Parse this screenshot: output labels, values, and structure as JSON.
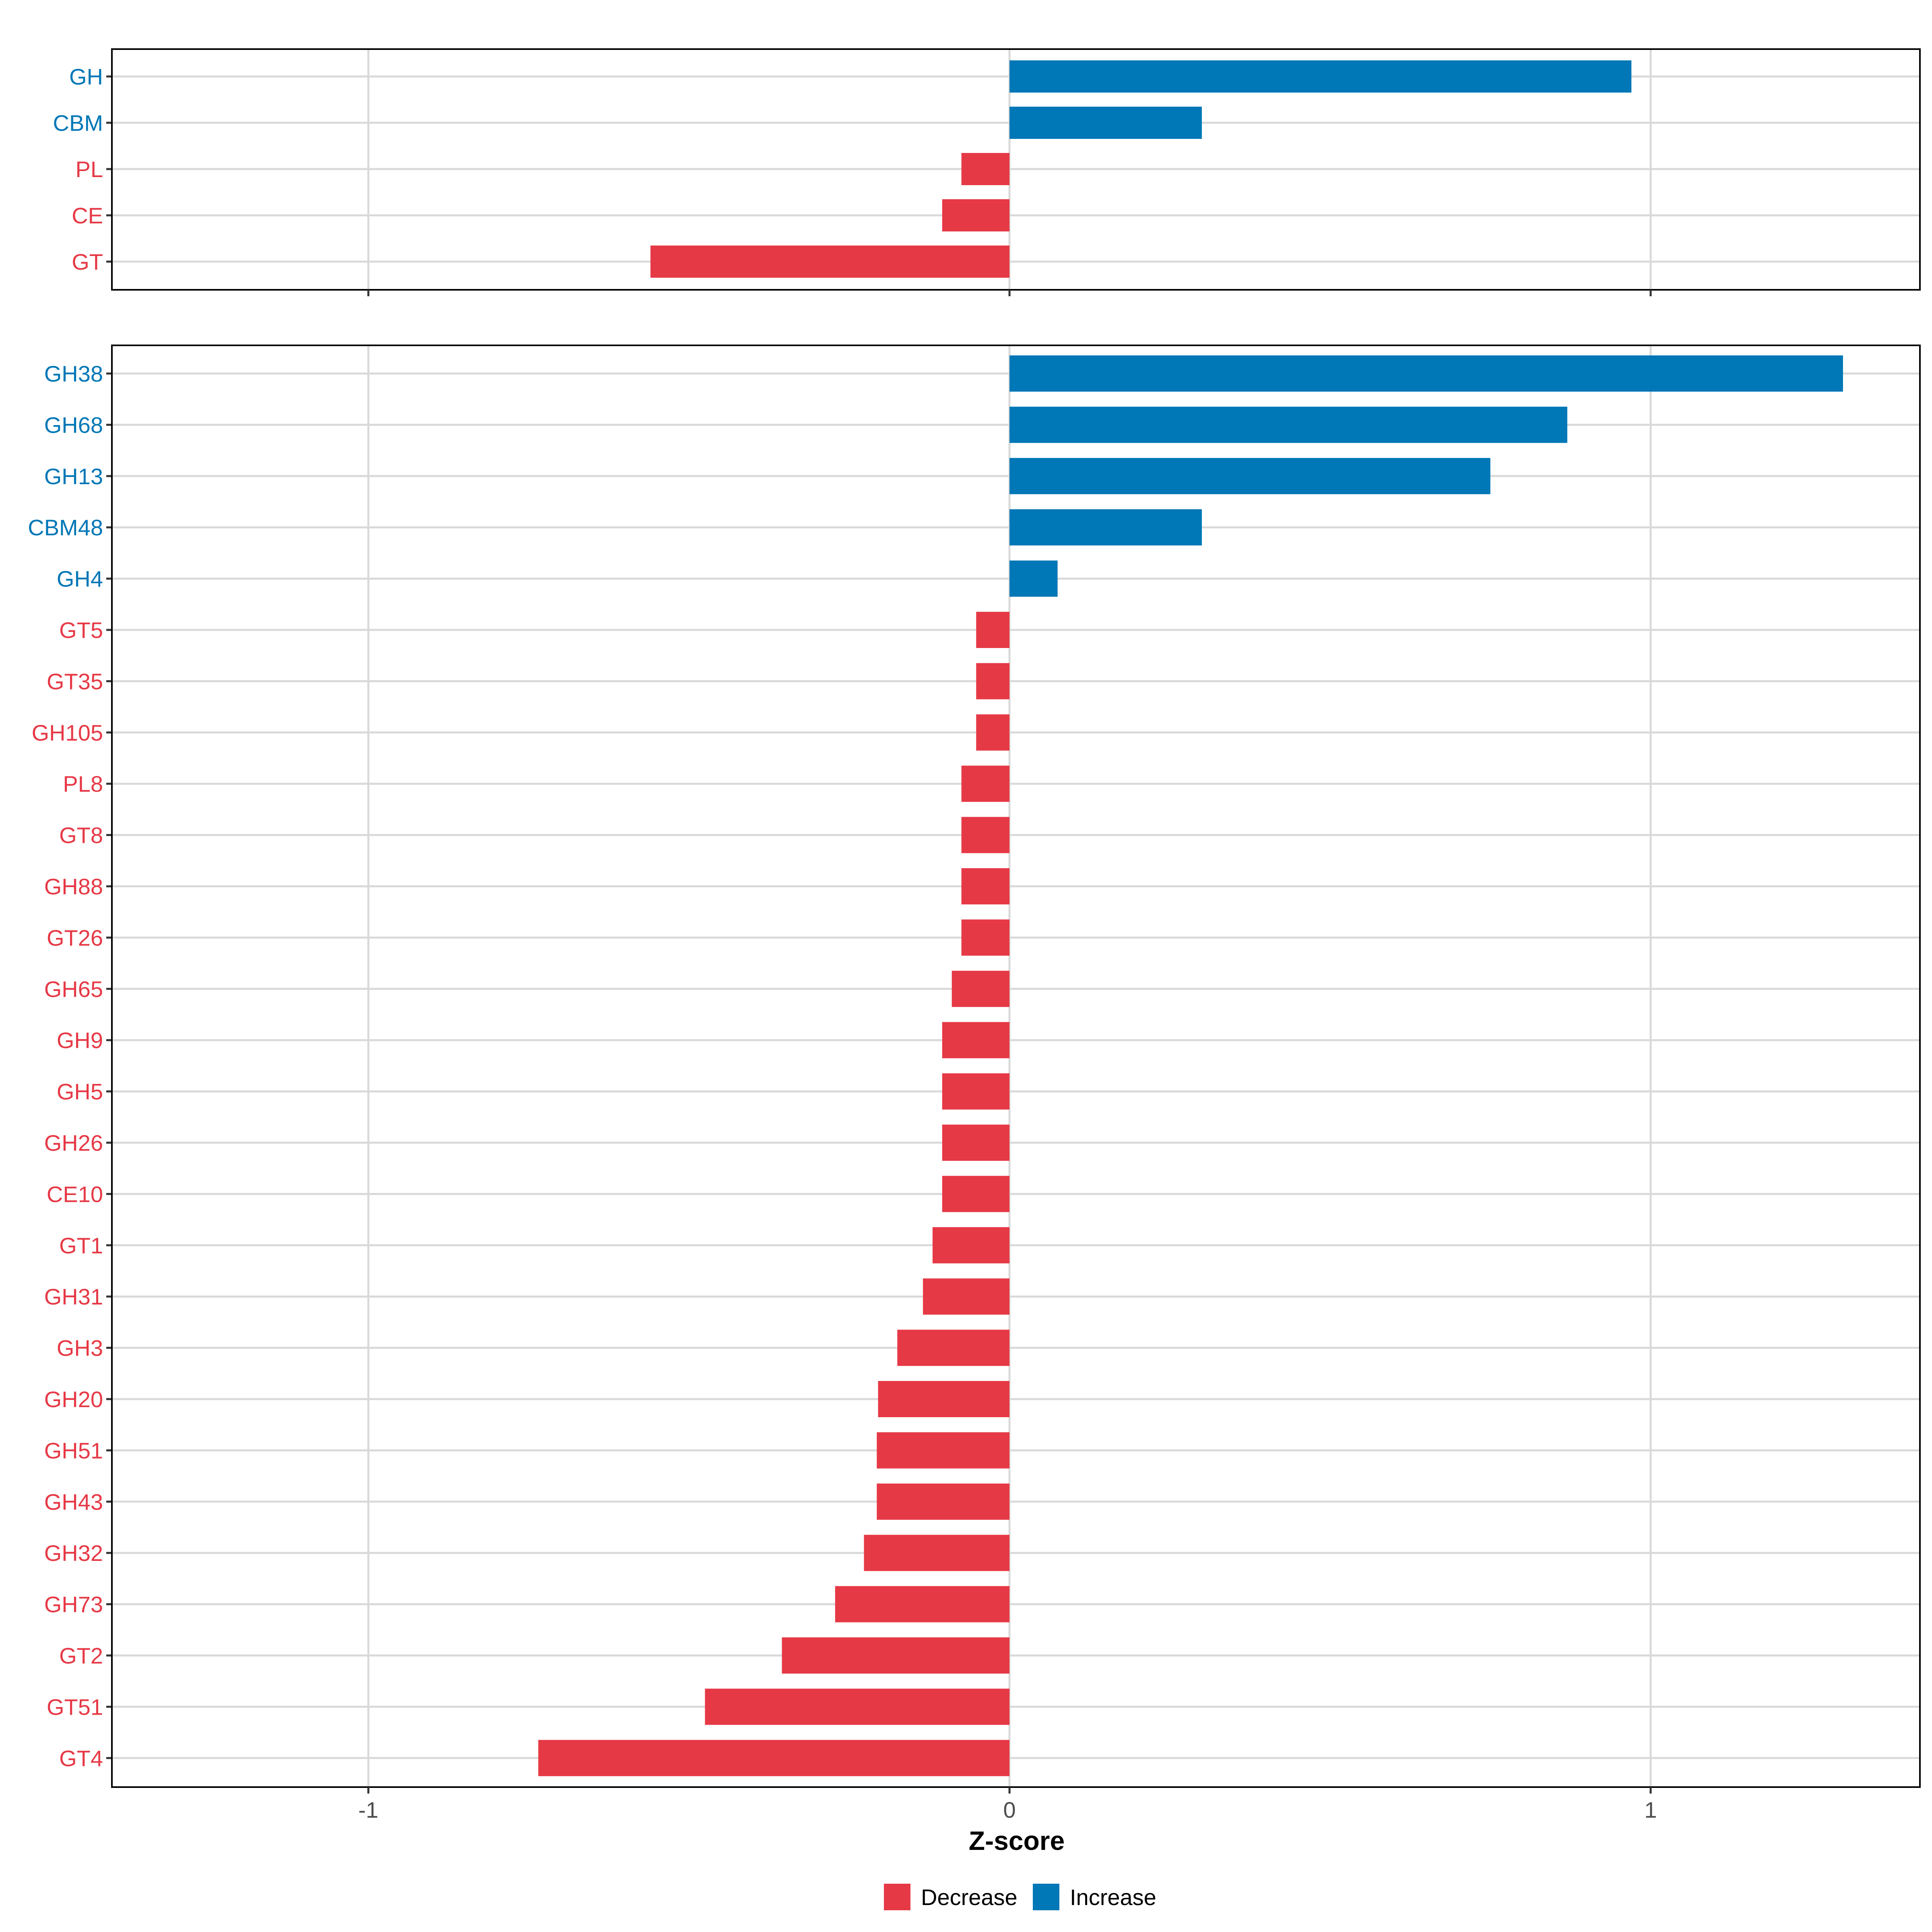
{
  "chart_data": {
    "type": "bar",
    "orientation": "horizontal",
    "xlabel": "Z-score",
    "xlim": [
      -1.4,
      1.42
    ],
    "xticks": [
      -1,
      0,
      1
    ],
    "xtick_labels": [
      "-1",
      "0",
      "1"
    ],
    "grid": true,
    "colors": {
      "Decrease": "#E63946",
      "Increase": "#0077B6"
    },
    "legend": {
      "position": "bottom",
      "entries": [
        "Decrease",
        "Increase"
      ]
    },
    "panels": [
      {
        "name": "top",
        "categories": [
          "GH",
          "CBM",
          "PL",
          "CE",
          "GT"
        ],
        "values": [
          0.97,
          0.3,
          -0.075,
          -0.105,
          -0.56
        ],
        "direction": [
          "Increase",
          "Increase",
          "Decrease",
          "Decrease",
          "Decrease"
        ]
      },
      {
        "name": "bottom",
        "categories": [
          "GH38",
          "GH68",
          "GH13",
          "CBM48",
          "GH4",
          "GT5",
          "GT35",
          "GH105",
          "PL8",
          "GT8",
          "GH88",
          "GT26",
          "GH65",
          "GH9",
          "GH5",
          "GH26",
          "CE10",
          "GT1",
          "GH31",
          "GH3",
          "GH20",
          "GH51",
          "GH43",
          "GH32",
          "GH73",
          "GT2",
          "GT51",
          "GT4"
        ],
        "values": [
          1.3,
          0.87,
          0.75,
          0.3,
          0.075,
          -0.052,
          -0.052,
          -0.052,
          -0.075,
          -0.075,
          -0.075,
          -0.075,
          -0.09,
          -0.105,
          -0.105,
          -0.105,
          -0.105,
          -0.12,
          -0.135,
          -0.175,
          -0.205,
          -0.207,
          -0.207,
          -0.227,
          -0.272,
          -0.355,
          -0.475,
          -0.735
        ],
        "direction": [
          "Increase",
          "Increase",
          "Increase",
          "Increase",
          "Increase",
          "Decrease",
          "Decrease",
          "Decrease",
          "Decrease",
          "Decrease",
          "Decrease",
          "Decrease",
          "Decrease",
          "Decrease",
          "Decrease",
          "Decrease",
          "Decrease",
          "Decrease",
          "Decrease",
          "Decrease",
          "Decrease",
          "Decrease",
          "Decrease",
          "Decrease",
          "Decrease",
          "Decrease",
          "Decrease",
          "Decrease"
        ]
      }
    ]
  }
}
